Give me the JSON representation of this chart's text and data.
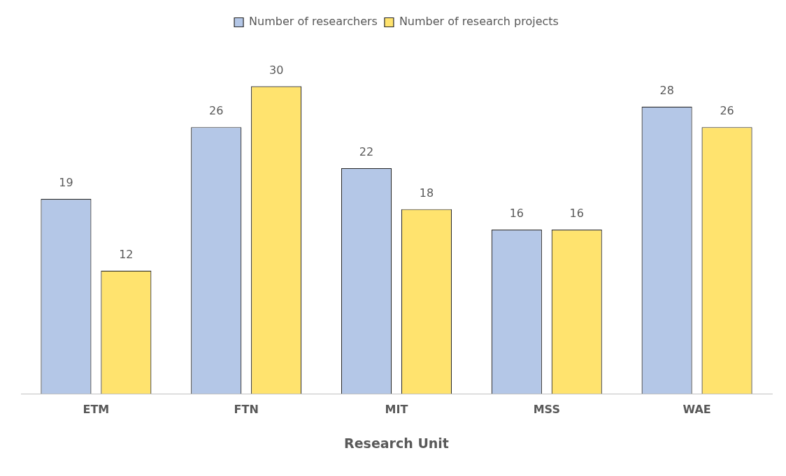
{
  "chart_data": {
    "type": "bar",
    "xlabel": "Research Unit",
    "categories": [
      "ETM",
      "FTN",
      "MIT",
      "MSS",
      "WAE"
    ],
    "series": [
      {
        "name": "Number of researchers",
        "color": "#b4c7e7",
        "values": [
          19,
          26,
          22,
          16,
          28
        ]
      },
      {
        "name": "Number of research projects",
        "color": "#ffe36e",
        "values": [
          12,
          30,
          18,
          16,
          26
        ]
      }
    ],
    "data_labels": true,
    "legend": "top",
    "grid": false
  }
}
